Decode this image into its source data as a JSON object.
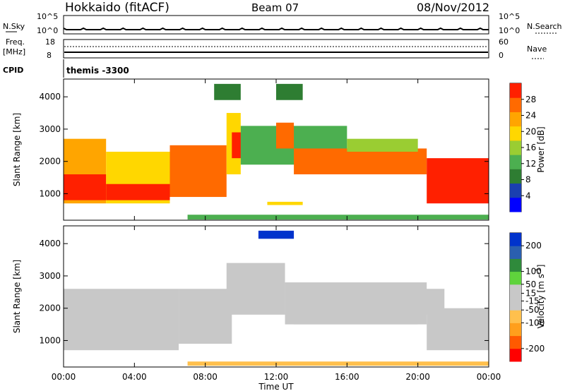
{
  "header": {
    "station": "Hokkaido (fitACF)",
    "beam": "Beam 07",
    "date": "08/Nov/2012"
  },
  "aux_panels": {
    "nsky": {
      "label": "N.Sky",
      "ticks_left": [
        "10^5",
        "10^0"
      ],
      "right_label": "N.Search",
      "ticks_right": [
        "10^5",
        "10^0"
      ]
    },
    "freq": {
      "label_line1": "Freq.",
      "label_line2": "[MHz]",
      "ticks_left": [
        "18",
        "8"
      ],
      "right_label": "Nave",
      "ticks_right": [
        "60",
        "0"
      ]
    },
    "cpid": {
      "label": "CPID",
      "value": "themis -3300"
    }
  },
  "colors": {
    "power_scale": [
      "#0000ff",
      "#1a3fb0",
      "#2e7d32",
      "#4caf50",
      "#9acd32",
      "#ffd700",
      "#ffa500",
      "#ff6a00",
      "#ff2000"
    ],
    "velocity_scale": [
      "#ff0000",
      "#ff5a00",
      "#ff9f1c",
      "#ffc04d",
      "#c8c8c8",
      "#c8c8c8",
      "#5fd33c",
      "#2f8a3b",
      "#2a5fb0",
      "#0033cc"
    ]
  },
  "chart_data": [
    {
      "type": "heatmap",
      "name": "power",
      "ylabel": "Slant Range [km]",
      "xlabel": "",
      "x_ticks": [
        "00:00",
        "04:00",
        "08:00",
        "12:00",
        "16:00",
        "20:00",
        "00:00"
      ],
      "x_tick_hours": [
        0,
        4,
        8,
        12,
        16,
        20,
        24
      ],
      "y_ticks": [
        1000,
        2000,
        3000,
        4000
      ],
      "ylim": [
        180,
        4550
      ],
      "colorbar": {
        "label": "Power [dB]",
        "ticks": [
          4,
          8,
          12,
          16,
          20,
          24,
          28
        ],
        "range": [
          0,
          32
        ]
      },
      "regions": [
        {
          "t0": 0.0,
          "t1": 2.4,
          "r0": 700,
          "r1": 2700,
          "value": 24
        },
        {
          "t0": 0.0,
          "t1": 2.4,
          "r0": 800,
          "r1": 1600,
          "value": 30
        },
        {
          "t0": 2.4,
          "t1": 6.0,
          "r0": 700,
          "r1": 2300,
          "value": 20
        },
        {
          "t0": 2.4,
          "t1": 6.0,
          "r0": 800,
          "r1": 1300,
          "value": 30
        },
        {
          "t0": 6.0,
          "t1": 9.2,
          "r0": 900,
          "r1": 2500,
          "value": 26
        },
        {
          "t0": 9.2,
          "t1": 10.0,
          "r0": 1600,
          "r1": 3500,
          "value": 18
        },
        {
          "t0": 9.5,
          "t1": 12.0,
          "r0": 2100,
          "r1": 2900,
          "value": 30
        },
        {
          "t0": 10.0,
          "t1": 16.0,
          "r0": 1900,
          "r1": 3100,
          "value": 12
        },
        {
          "t0": 12.0,
          "t1": 13.0,
          "r0": 2400,
          "r1": 3200,
          "value": 28
        },
        {
          "t0": 13.0,
          "t1": 20.5,
          "r0": 1600,
          "r1": 2400,
          "value": 28
        },
        {
          "t0": 16.0,
          "t1": 20.0,
          "r0": 2300,
          "r1": 2700,
          "value": 16
        },
        {
          "t0": 20.5,
          "t1": 24.0,
          "r0": 700,
          "r1": 2100,
          "value": 30
        },
        {
          "t0": 7.0,
          "t1": 24.0,
          "r0": 200,
          "r1": 350,
          "value": 12
        },
        {
          "t0": 11.5,
          "t1": 13.5,
          "r0": 650,
          "r1": 750,
          "value": 20
        },
        {
          "t0": 8.5,
          "t1": 10.0,
          "r0": 3900,
          "r1": 4400,
          "value": 10
        },
        {
          "t0": 12.0,
          "t1": 13.5,
          "r0": 3900,
          "r1": 4400,
          "value": 8
        }
      ]
    },
    {
      "type": "heatmap",
      "name": "velocity",
      "ylabel": "Slant Range [km]",
      "xlabel": "Time UT",
      "x_ticks": [
        "00:00",
        "04:00",
        "08:00",
        "12:00",
        "16:00",
        "20:00",
        "00:00"
      ],
      "x_tick_hours": [
        0,
        4,
        8,
        12,
        16,
        20,
        24
      ],
      "y_ticks": [
        1000,
        2000,
        3000,
        4000
      ],
      "ylim": [
        180,
        4550
      ],
      "colorbar": {
        "label": "Velocity [m s^-1]",
        "ticks": [
          -200,
          -100,
          -50,
          -15,
          15,
          50,
          100,
          200
        ],
        "range": [
          -250,
          250
        ]
      },
      "regions": [
        {
          "t0": 0.0,
          "t1": 6.5,
          "r0": 700,
          "r1": 2600,
          "value": 0
        },
        {
          "t0": 6.5,
          "t1": 9.5,
          "r0": 900,
          "r1": 2600,
          "value": 0
        },
        {
          "t0": 9.2,
          "t1": 12.5,
          "r0": 1800,
          "r1": 3400,
          "value": 0
        },
        {
          "t0": 12.5,
          "t1": 20.5,
          "r0": 1500,
          "r1": 2800,
          "value": 0
        },
        {
          "t0": 20.5,
          "t1": 24.0,
          "r0": 700,
          "r1": 2000,
          "value": 0
        },
        {
          "t0": 13.0,
          "t1": 20.0,
          "r0": 1500,
          "r1": 1700,
          "value": 30
        },
        {
          "t0": 19.0,
          "t1": 21.5,
          "r0": 1800,
          "r1": 2600,
          "value": 30
        },
        {
          "t0": 7.0,
          "t1": 24.0,
          "r0": 220,
          "r1": 350,
          "value": -60
        },
        {
          "t0": 11.0,
          "t1": 13.0,
          "r0": 4150,
          "r1": 4400,
          "value": 220
        }
      ]
    }
  ]
}
